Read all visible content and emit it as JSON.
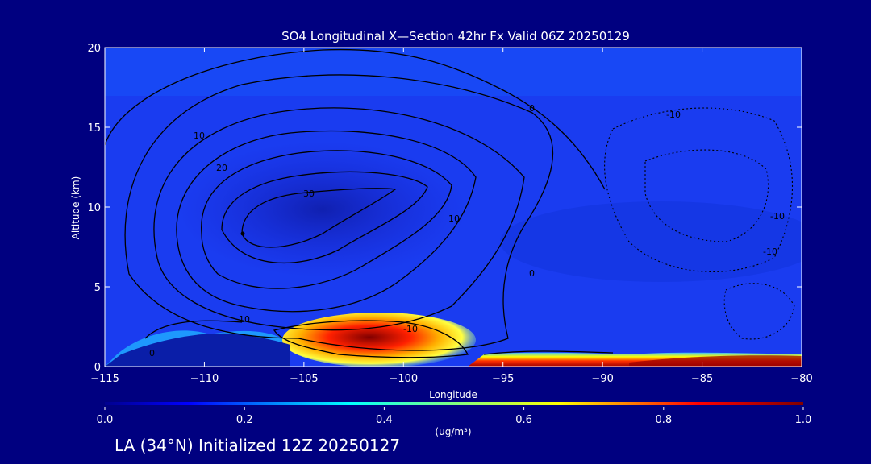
{
  "chart_data": {
    "type": "heatmap",
    "title": "SO4 Longitudinal X—Section 42hr  Fx Valid 06Z 20250129",
    "xlabel": "Longitude",
    "ylabel": "Altitude (km)",
    "xlim": [
      -115,
      -80
    ],
    "ylim": [
      0,
      20
    ],
    "x_ticks": [
      -115,
      -110,
      -105,
      -100,
      -95,
      -90,
      -85,
      -80
    ],
    "y_ticks": [
      0,
      5,
      10,
      15,
      20
    ],
    "colorbar": {
      "min": 0.0,
      "max": 1.0,
      "ticks": [
        "0.0",
        "0.2",
        "0.4",
        "0.6",
        "0.8",
        "1.0"
      ],
      "unit_label": "(ug/m³)",
      "colormap": "rainbow (dark blue → cyan → yellow → red → dark red)"
    },
    "features": [
      {
        "name": "background concentration",
        "longitude": [
          -115,
          -80
        ],
        "altitude": [
          3,
          20
        ],
        "value": 0.08
      },
      {
        "name": "low-concentration core aloft",
        "longitude": [
          -110,
          -99
        ],
        "altitude": [
          7,
          13
        ],
        "value": 0.03
      },
      {
        "name": "high-concentration plume",
        "longitude": [
          -104,
          -97
        ],
        "altitude": [
          0.8,
          2.8
        ],
        "value": 0.9
      },
      {
        "name": "eastern surface layer",
        "longitude": [
          -96,
          -80
        ],
        "altitude": [
          0,
          1
        ],
        "value": 0.9
      }
    ],
    "contour_labels": [
      "0",
      "10",
      "20",
      "30",
      "-10",
      "10",
      "0",
      "10",
      "0",
      "-10",
      "-10",
      "-10"
    ],
    "contour_color": "#000000",
    "colors": {
      "background": "#000080",
      "text": "#ffffff",
      "contour": "#000000"
    }
  },
  "footer": {
    "location_label": "LA (34°N) Initialized 12Z 20250127"
  }
}
